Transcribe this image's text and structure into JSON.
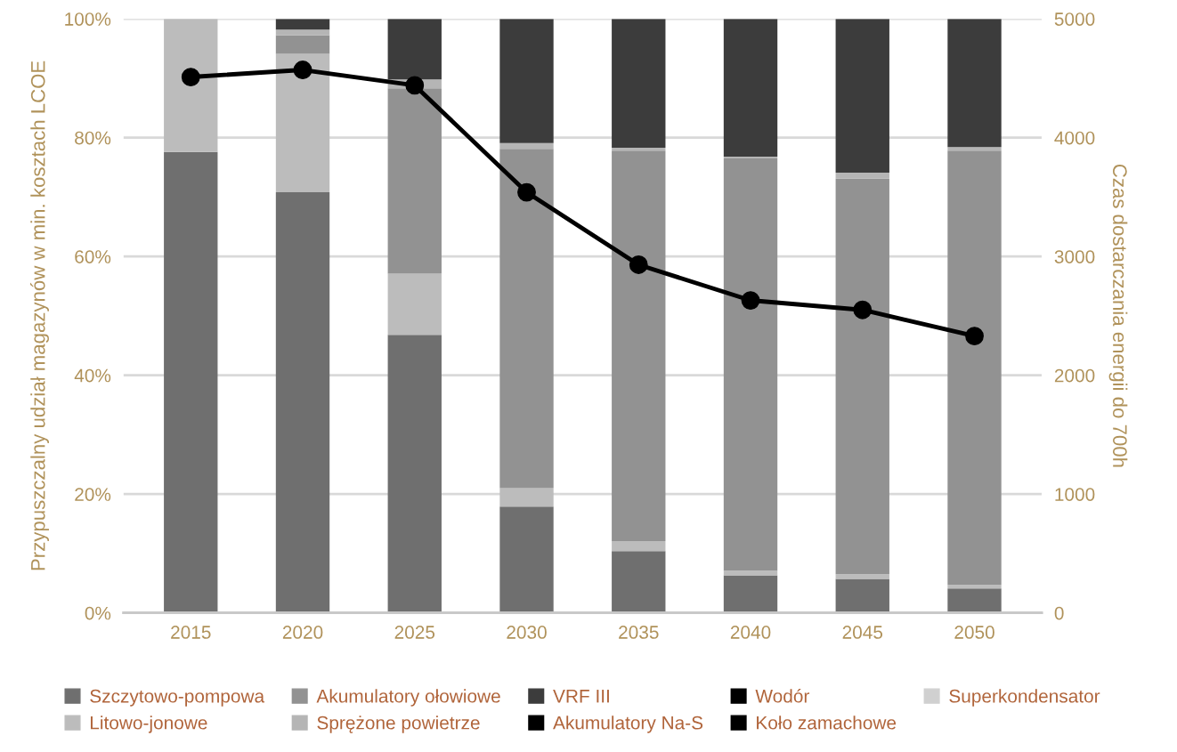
{
  "chart_data": {
    "type": "bar",
    "stacked": true,
    "categories": [
      "2015",
      "2020",
      "2025",
      "2030",
      "2035",
      "2040",
      "2045",
      "2050"
    ],
    "ylabel": "Przypuszczalny udział magazynów w min. kosztach LCOE",
    "y2label": "Czas dostarczania energii do 700h",
    "ylim": [
      0,
      100
    ],
    "yticks": [
      {
        "value": 0,
        "label": "0%"
      },
      {
        "value": 20,
        "label": "20%"
      },
      {
        "value": 40,
        "label": "40%"
      },
      {
        "value": 60,
        "label": "60%"
      },
      {
        "value": 80,
        "label": "80%"
      },
      {
        "value": 100,
        "label": "100%"
      }
    ],
    "y2lim": [
      0,
      5000
    ],
    "y2ticks": [
      0,
      1000,
      2000,
      3000,
      4000,
      5000
    ],
    "grid": "y",
    "legend": "bottom",
    "series": [
      {
        "name": "Szczytowo-pompowa",
        "color": "#6f6f6f",
        "values": [
          77.6,
          70.8,
          46.8,
          17.9,
          10.4,
          6.3,
          5.7,
          4.1
        ]
      },
      {
        "name": "Litowo-jonowe",
        "color": "#bcbcbc",
        "values": [
          22.4,
          23.3,
          10.3,
          3.1,
          1.7,
          0.8,
          0.8,
          0.6
        ]
      },
      {
        "name": "Akumulatory ołowiowe",
        "color": "#929292",
        "values": [
          0,
          3.1,
          31.2,
          57.1,
          65.7,
          69.4,
          66.6,
          73.1
        ]
      },
      {
        "name": "Sprężone powietrze",
        "color": "#b5b5b5",
        "values": [
          0,
          1.0,
          1.5,
          1.0,
          0.5,
          0.3,
          1.0,
          0.6
        ]
      },
      {
        "name": "VRF III",
        "color": "#3c3c3c",
        "values": [
          0,
          1.8,
          10.2,
          20.9,
          21.7,
          23.2,
          25.9,
          21.6
        ]
      },
      {
        "name": "Akumulatory Na-S",
        "color": "#000000",
        "values": [
          0,
          0,
          0,
          0,
          0,
          0,
          0,
          0
        ]
      },
      {
        "name": "Wodór",
        "color": "#000000",
        "values": [
          0,
          0,
          0,
          0,
          0,
          0,
          0,
          0
        ]
      },
      {
        "name": "Koło zamachowe",
        "color": "#000000",
        "values": [
          0,
          0,
          0,
          0,
          0,
          0,
          0,
          0
        ]
      },
      {
        "name": "Superkondensator",
        "color": "#d0d0d0",
        "values": [
          0,
          0,
          0,
          0,
          0,
          0,
          0,
          0
        ]
      },
      {
        "type": "line",
        "axis": "y2",
        "color": "#000000",
        "marker": "circle",
        "line_style": "solid",
        "values": [
          4510,
          4570,
          4440,
          3540,
          2930,
          2630,
          2550,
          2330
        ]
      }
    ]
  }
}
